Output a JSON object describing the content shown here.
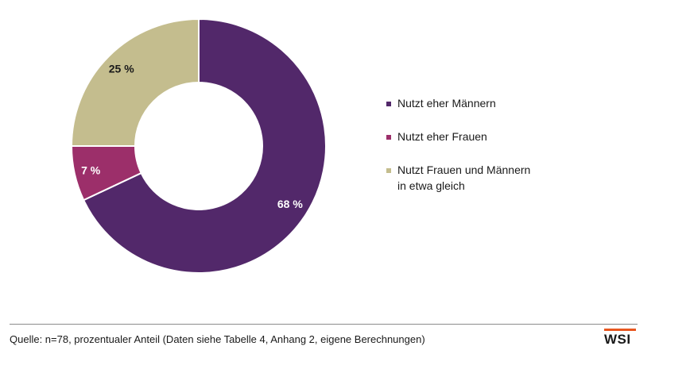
{
  "chart_data": {
    "type": "pie",
    "variant": "donut",
    "categories": [
      "Nutzt eher Männern",
      "Nutzt eher Frauen",
      "Nutzt Frauen und Männern in etwa gleich"
    ],
    "values": [
      68,
      7,
      25
    ],
    "value_labels": [
      "68 %",
      "7 %",
      "25 %"
    ],
    "colors": [
      "#52286a",
      "#9c2f6a",
      "#c4bd8e"
    ],
    "title": "",
    "legend_position": "right"
  },
  "legend": [
    {
      "label": "Nutzt eher Männern",
      "color": "#52286a"
    },
    {
      "label": "Nutzt eher Frauen",
      "color": "#9c2f6a"
    },
    {
      "label_line1": "Nutzt Frauen und Männern",
      "label_line2": "in etwa gleich",
      "color": "#c4bd8e"
    }
  ],
  "footer": {
    "source": "Quelle: n=78, prozentualer Anteil (Daten siehe Tabelle 4, Anhang 2, eigene Berechnungen)",
    "logo_text": "WSI",
    "logo_color": "#e8561f"
  }
}
